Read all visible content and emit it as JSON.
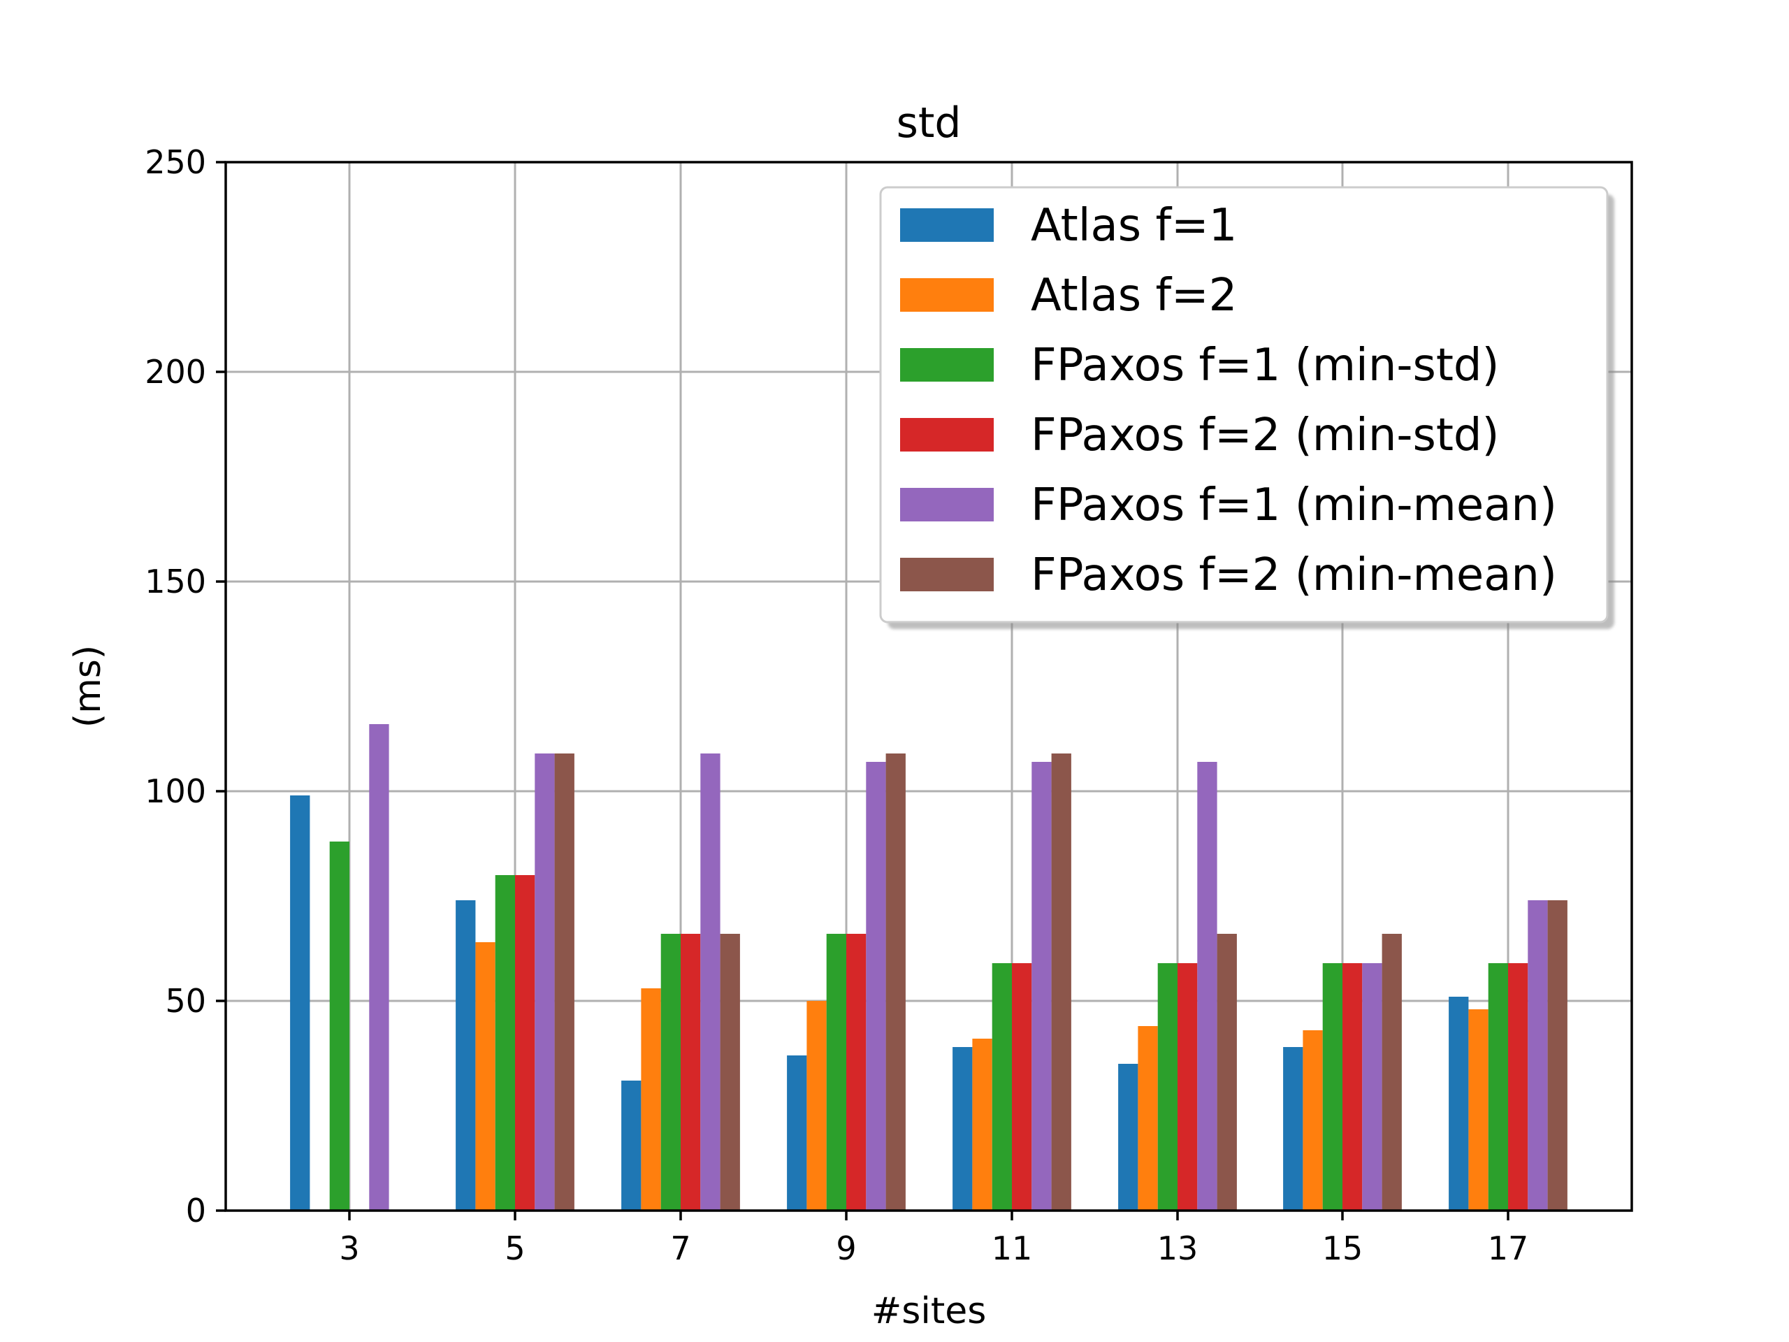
{
  "chart_data": {
    "type": "bar",
    "title": "std",
    "xlabel": "#sites",
    "ylabel": "(ms)",
    "categories": [
      "3",
      "5",
      "7",
      "9",
      "11",
      "13",
      "15",
      "17"
    ],
    "yticks": [
      "0",
      "50",
      "100",
      "150",
      "200",
      "250"
    ],
    "ylim": [
      0,
      250
    ],
    "grid": true,
    "legend_position": "top-right",
    "series": [
      {
        "name": "Atlas f=1",
        "color": "#1f77b4",
        "values": [
          99,
          74,
          31,
          37,
          39,
          35,
          39,
          51
        ]
      },
      {
        "name": "Atlas f=2",
        "color": "#ff7f0e",
        "values": [
          null,
          64,
          53,
          50,
          41,
          44,
          43,
          48
        ]
      },
      {
        "name": "FPaxos f=1 (min-std)",
        "color": "#2ca02c",
        "values": [
          88,
          80,
          66,
          66,
          59,
          59,
          59,
          59
        ]
      },
      {
        "name": "FPaxos f=2 (min-std)",
        "color": "#d62728",
        "values": [
          null,
          80,
          66,
          66,
          59,
          59,
          59,
          59
        ]
      },
      {
        "name": "FPaxos f=1 (min-mean)",
        "color": "#9467bd",
        "values": [
          116,
          109,
          109,
          107,
          107,
          107,
          59,
          74
        ]
      },
      {
        "name": "FPaxos f=2 (min-mean)",
        "color": "#8c564b",
        "values": [
          null,
          109,
          66,
          109,
          109,
          66,
          66,
          74
        ]
      }
    ]
  }
}
